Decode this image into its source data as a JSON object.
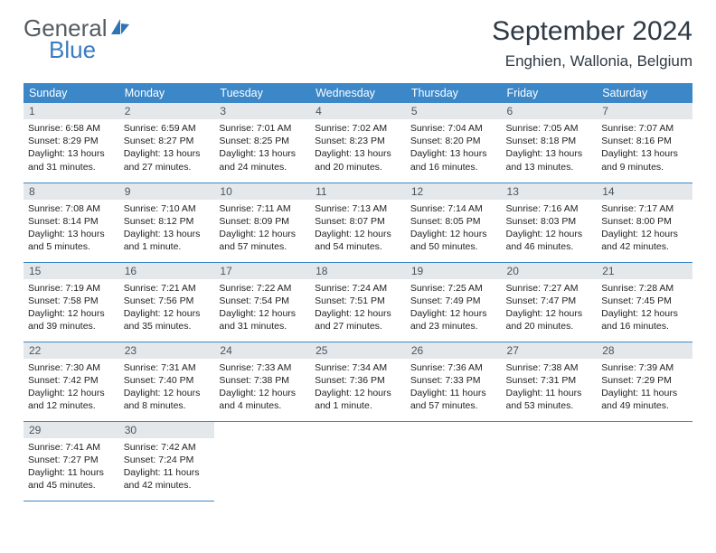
{
  "logo": {
    "line1": "General",
    "line2": "Blue",
    "icon_color": "#2e74b5"
  },
  "header": {
    "title": "September 2024",
    "location": "Enghien, Wallonia, Belgium"
  },
  "colors": {
    "header_bg": "#3b87c8",
    "header_text": "#ffffff",
    "daynum_bg": "#e4e8eb",
    "row_border": "#3b87c8"
  },
  "weekdays": [
    "Sunday",
    "Monday",
    "Tuesday",
    "Wednesday",
    "Thursday",
    "Friday",
    "Saturday"
  ],
  "days": [
    {
      "n": 1,
      "sunrise": "6:58 AM",
      "sunset": "8:29 PM",
      "daylight": "13 hours and 31 minutes."
    },
    {
      "n": 2,
      "sunrise": "6:59 AM",
      "sunset": "8:27 PM",
      "daylight": "13 hours and 27 minutes."
    },
    {
      "n": 3,
      "sunrise": "7:01 AM",
      "sunset": "8:25 PM",
      "daylight": "13 hours and 24 minutes."
    },
    {
      "n": 4,
      "sunrise": "7:02 AM",
      "sunset": "8:23 PM",
      "daylight": "13 hours and 20 minutes."
    },
    {
      "n": 5,
      "sunrise": "7:04 AM",
      "sunset": "8:20 PM",
      "daylight": "13 hours and 16 minutes."
    },
    {
      "n": 6,
      "sunrise": "7:05 AM",
      "sunset": "8:18 PM",
      "daylight": "13 hours and 13 minutes."
    },
    {
      "n": 7,
      "sunrise": "7:07 AM",
      "sunset": "8:16 PM",
      "daylight": "13 hours and 9 minutes."
    },
    {
      "n": 8,
      "sunrise": "7:08 AM",
      "sunset": "8:14 PM",
      "daylight": "13 hours and 5 minutes."
    },
    {
      "n": 9,
      "sunrise": "7:10 AM",
      "sunset": "8:12 PM",
      "daylight": "13 hours and 1 minute."
    },
    {
      "n": 10,
      "sunrise": "7:11 AM",
      "sunset": "8:09 PM",
      "daylight": "12 hours and 57 minutes."
    },
    {
      "n": 11,
      "sunrise": "7:13 AM",
      "sunset": "8:07 PM",
      "daylight": "12 hours and 54 minutes."
    },
    {
      "n": 12,
      "sunrise": "7:14 AM",
      "sunset": "8:05 PM",
      "daylight": "12 hours and 50 minutes."
    },
    {
      "n": 13,
      "sunrise": "7:16 AM",
      "sunset": "8:03 PM",
      "daylight": "12 hours and 46 minutes."
    },
    {
      "n": 14,
      "sunrise": "7:17 AM",
      "sunset": "8:00 PM",
      "daylight": "12 hours and 42 minutes."
    },
    {
      "n": 15,
      "sunrise": "7:19 AM",
      "sunset": "7:58 PM",
      "daylight": "12 hours and 39 minutes."
    },
    {
      "n": 16,
      "sunrise": "7:21 AM",
      "sunset": "7:56 PM",
      "daylight": "12 hours and 35 minutes."
    },
    {
      "n": 17,
      "sunrise": "7:22 AM",
      "sunset": "7:54 PM",
      "daylight": "12 hours and 31 minutes."
    },
    {
      "n": 18,
      "sunrise": "7:24 AM",
      "sunset": "7:51 PM",
      "daylight": "12 hours and 27 minutes."
    },
    {
      "n": 19,
      "sunrise": "7:25 AM",
      "sunset": "7:49 PM",
      "daylight": "12 hours and 23 minutes."
    },
    {
      "n": 20,
      "sunrise": "7:27 AM",
      "sunset": "7:47 PM",
      "daylight": "12 hours and 20 minutes."
    },
    {
      "n": 21,
      "sunrise": "7:28 AM",
      "sunset": "7:45 PM",
      "daylight": "12 hours and 16 minutes."
    },
    {
      "n": 22,
      "sunrise": "7:30 AM",
      "sunset": "7:42 PM",
      "daylight": "12 hours and 12 minutes."
    },
    {
      "n": 23,
      "sunrise": "7:31 AM",
      "sunset": "7:40 PM",
      "daylight": "12 hours and 8 minutes."
    },
    {
      "n": 24,
      "sunrise": "7:33 AM",
      "sunset": "7:38 PM",
      "daylight": "12 hours and 4 minutes."
    },
    {
      "n": 25,
      "sunrise": "7:34 AM",
      "sunset": "7:36 PM",
      "daylight": "12 hours and 1 minute."
    },
    {
      "n": 26,
      "sunrise": "7:36 AM",
      "sunset": "7:33 PM",
      "daylight": "11 hours and 57 minutes."
    },
    {
      "n": 27,
      "sunrise": "7:38 AM",
      "sunset": "7:31 PM",
      "daylight": "11 hours and 53 minutes."
    },
    {
      "n": 28,
      "sunrise": "7:39 AM",
      "sunset": "7:29 PM",
      "daylight": "11 hours and 49 minutes."
    },
    {
      "n": 29,
      "sunrise": "7:41 AM",
      "sunset": "7:27 PM",
      "daylight": "11 hours and 45 minutes."
    },
    {
      "n": 30,
      "sunrise": "7:42 AM",
      "sunset": "7:24 PM",
      "daylight": "11 hours and 42 minutes."
    }
  ],
  "labels": {
    "sunrise": "Sunrise:",
    "sunset": "Sunset:",
    "daylight": "Daylight:"
  }
}
